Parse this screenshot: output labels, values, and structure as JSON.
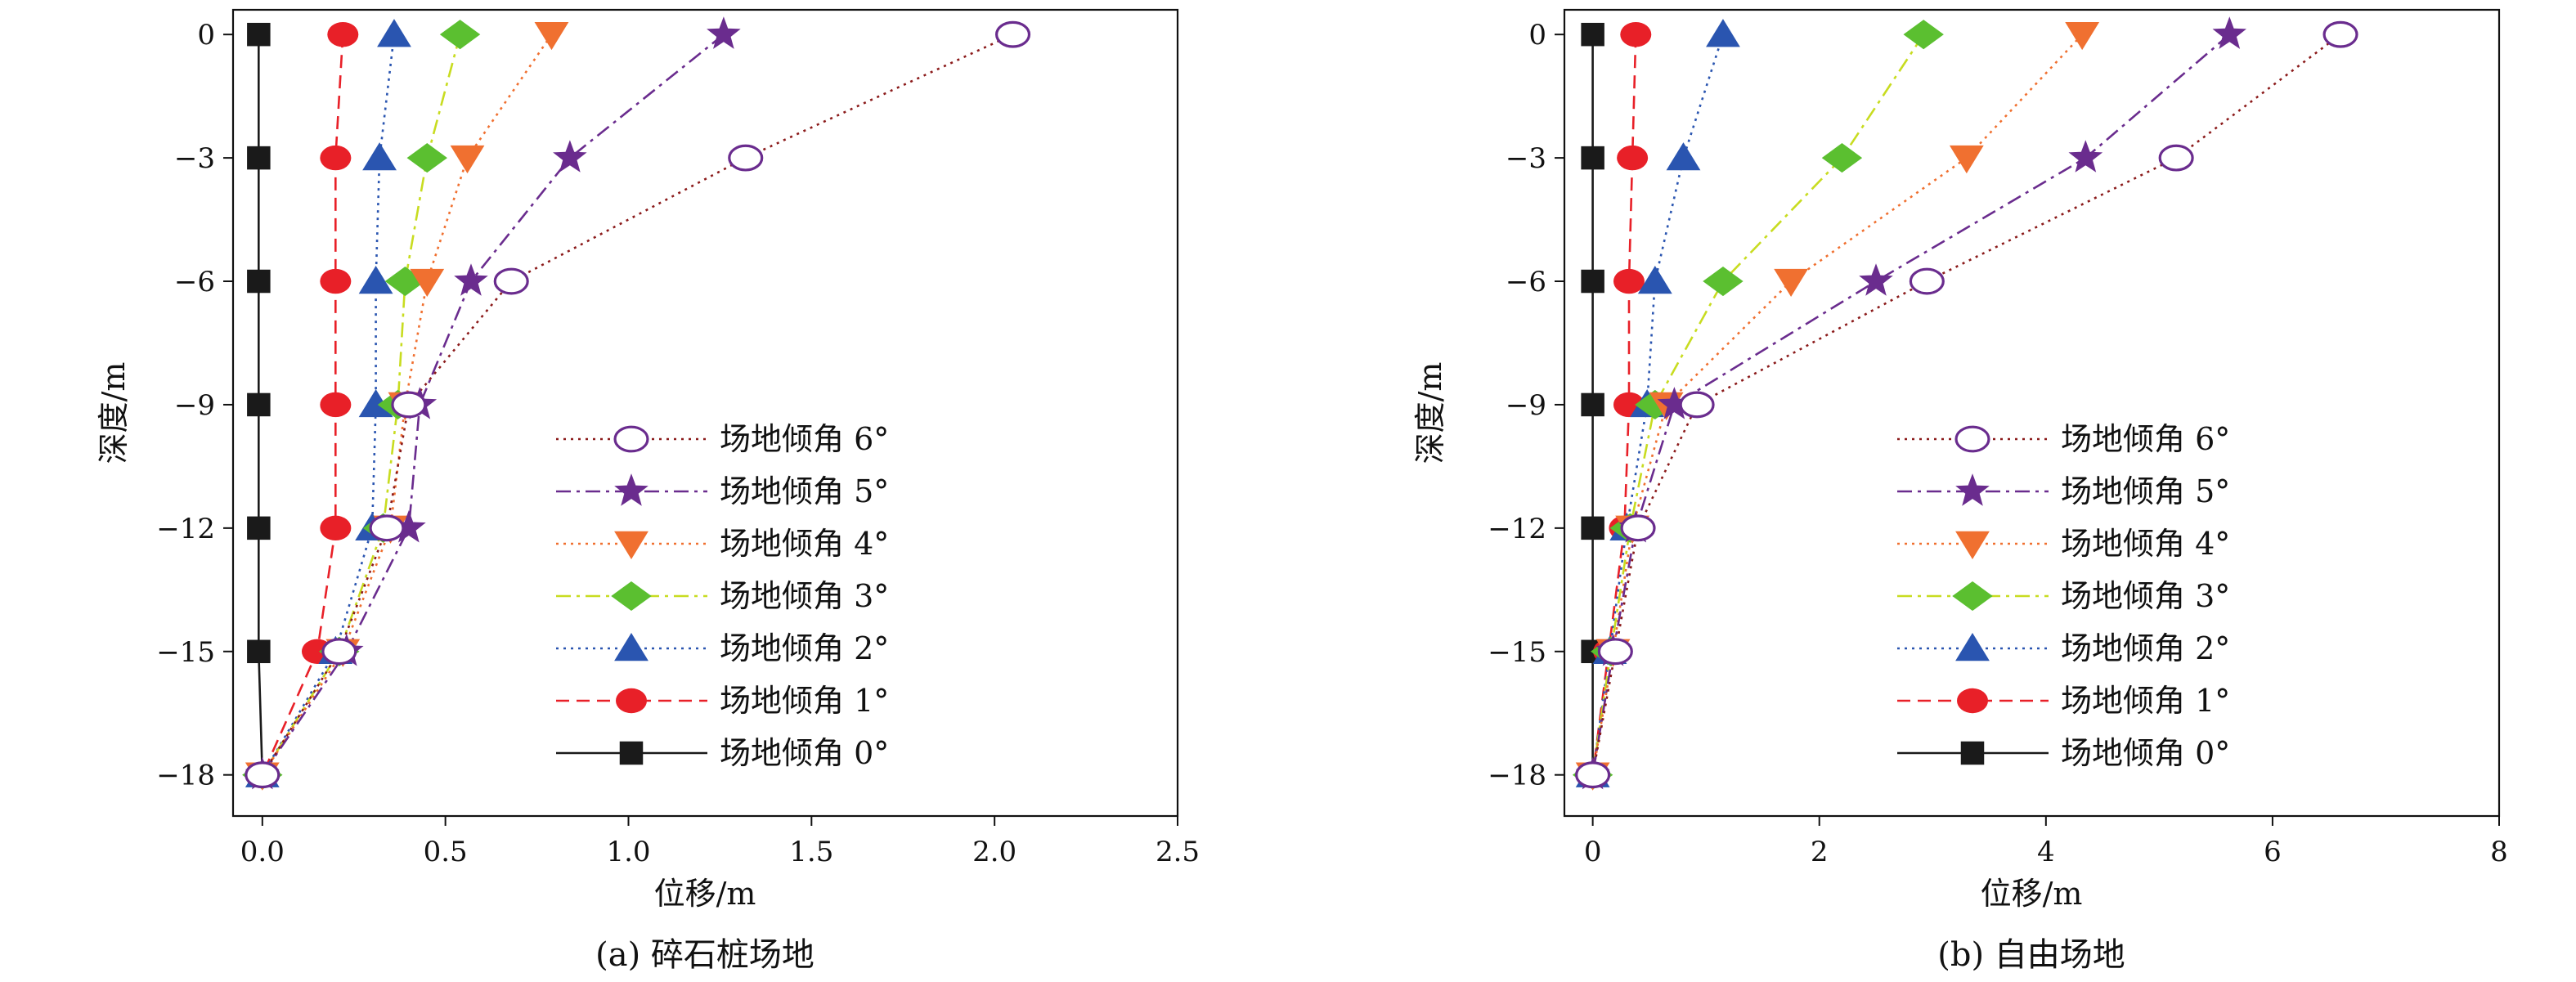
{
  "series_styles": [
    {
      "key": "s6",
      "color": "#6a2c8e",
      "line_color": "#8b1a1a",
      "dash": "dot",
      "marker": "circle-open"
    },
    {
      "key": "s5",
      "color": "#6a2c8e",
      "line_color": "#6a2c8e",
      "dash": "dashdot",
      "marker": "star"
    },
    {
      "key": "s4",
      "color": "#f07030",
      "line_color": "#f07030",
      "dash": "dot",
      "marker": "triangle-down"
    },
    {
      "key": "s3",
      "color": "#5bbf30",
      "line_color": "#c8dc20",
      "dash": "dashdot",
      "marker": "diamond"
    },
    {
      "key": "s2",
      "color": "#2a55b0",
      "line_color": "#2a55b0",
      "dash": "dot",
      "marker": "triangle-up"
    },
    {
      "key": "s1",
      "color": "#e82028",
      "line_color": "#e82028",
      "dash": "dash",
      "marker": "ellipse"
    },
    {
      "key": "s0",
      "color": "#1a1a1a",
      "line_color": "#1a1a1a",
      "dash": "solid",
      "marker": "square"
    }
  ],
  "chart_data": [
    {
      "type": "line",
      "caption": "(a) 碎石桩场地",
      "xlabel": "位移/m",
      "ylabel": "深度/m",
      "xlim": [
        -0.08,
        2.5
      ],
      "ylim": [
        -19,
        0.6
      ],
      "xticks": [
        0.0,
        0.5,
        1.0,
        1.5,
        2.0,
        2.5
      ],
      "xtick_labels": [
        "0.0",
        "0.5",
        "1.0",
        "1.5",
        "2.0",
        "2.5"
      ],
      "yticks": [
        0,
        -3,
        -6,
        -9,
        -12,
        -15,
        -18
      ],
      "ytick_labels": [
        "0",
        "−3",
        "−6",
        "−9",
        "−12",
        "−15",
        "−18"
      ],
      "legend_position": "right-middle",
      "series": [
        {
          "name": "场地倾角 6°",
          "x": [
            2.05,
            1.32,
            0.68,
            0.4,
            0.34,
            0.21,
            0.0
          ],
          "y": [
            0,
            -3,
            -6,
            -9,
            -12,
            -15,
            -18
          ]
        },
        {
          "name": "场地倾角 5°",
          "x": [
            1.26,
            0.84,
            0.57,
            0.43,
            0.4,
            0.23,
            0.0
          ],
          "y": [
            0,
            -3,
            -6,
            -9,
            -12,
            -15,
            -18
          ]
        },
        {
          "name": "场地倾角 4°",
          "x": [
            0.79,
            0.56,
            0.45,
            0.39,
            0.35,
            0.22,
            0.0
          ],
          "y": [
            0,
            -3,
            -6,
            -9,
            -12,
            -15,
            -18
          ]
        },
        {
          "name": "场地倾角 3°",
          "x": [
            0.54,
            0.45,
            0.39,
            0.37,
            0.33,
            0.21,
            0.0
          ],
          "y": [
            0,
            -3,
            -6,
            -9,
            -12,
            -15,
            -18
          ]
        },
        {
          "name": "场地倾角 2°",
          "x": [
            0.36,
            0.32,
            0.31,
            0.31,
            0.3,
            0.2,
            0.0
          ],
          "y": [
            0,
            -3,
            -6,
            -9,
            -12,
            -15,
            -18
          ]
        },
        {
          "name": "场地倾角 1°",
          "x": [
            0.22,
            0.2,
            0.2,
            0.2,
            0.2,
            0.15,
            0.0
          ],
          "y": [
            0,
            -3,
            -6,
            -9,
            -12,
            -15,
            -18
          ]
        },
        {
          "name": "场地倾角 0°",
          "x": [
            -0.01,
            -0.01,
            -0.01,
            -0.01,
            -0.01,
            -0.01,
            0.0
          ],
          "y": [
            0,
            -3,
            -6,
            -9,
            -12,
            -15,
            -18
          ]
        }
      ]
    },
    {
      "type": "line",
      "caption": "(b) 自由场地",
      "xlabel": "位移/m",
      "ylabel": "深度/m",
      "xlim": [
        -0.25,
        8
      ],
      "ylim": [
        -19,
        0.6
      ],
      "xticks": [
        0,
        2,
        4,
        6,
        8
      ],
      "xtick_labels": [
        "0",
        "2",
        "4",
        "6",
        "8"
      ],
      "yticks": [
        0,
        -3,
        -6,
        -9,
        -12,
        -15,
        -18
      ],
      "ytick_labels": [
        "0",
        "−3",
        "−6",
        "−9",
        "−12",
        "−15",
        "−18"
      ],
      "legend_position": "right-middle",
      "series": [
        {
          "name": "场地倾角 6°",
          "x": [
            6.6,
            5.15,
            2.95,
            0.92,
            0.4,
            0.2,
            0.0
          ],
          "y": [
            0,
            -3,
            -6,
            -9,
            -12,
            -15,
            -18
          ]
        },
        {
          "name": "场地倾角 5°",
          "x": [
            5.62,
            4.35,
            2.5,
            0.72,
            0.38,
            0.18,
            0.0
          ],
          "y": [
            0,
            -3,
            -6,
            -9,
            -12,
            -15,
            -18
          ]
        },
        {
          "name": "场地倾角 4°",
          "x": [
            4.32,
            3.3,
            1.75,
            0.65,
            0.35,
            0.18,
            0.0
          ],
          "y": [
            0,
            -3,
            -6,
            -9,
            -12,
            -15,
            -18
          ]
        },
        {
          "name": "场地倾角 3°",
          "x": [
            2.92,
            2.2,
            1.15,
            0.55,
            0.33,
            0.16,
            0.0
          ],
          "y": [
            0,
            -3,
            -6,
            -9,
            -12,
            -15,
            -18
          ]
        },
        {
          "name": "场地倾角 2°",
          "x": [
            1.15,
            0.8,
            0.55,
            0.48,
            0.3,
            0.15,
            0.0
          ],
          "y": [
            0,
            -3,
            -6,
            -9,
            -12,
            -15,
            -18
          ]
        },
        {
          "name": "场地倾角 1°",
          "x": [
            0.38,
            0.35,
            0.32,
            0.32,
            0.28,
            0.14,
            0.0
          ],
          "y": [
            0,
            -3,
            -6,
            -9,
            -12,
            -15,
            -18
          ]
        },
        {
          "name": "场地倾角 0°",
          "x": [
            0.0,
            0.0,
            0.0,
            0.0,
            0.0,
            0.0,
            0.0
          ],
          "y": [
            0,
            -3,
            -6,
            -9,
            -12,
            -15,
            -18
          ]
        }
      ]
    }
  ]
}
